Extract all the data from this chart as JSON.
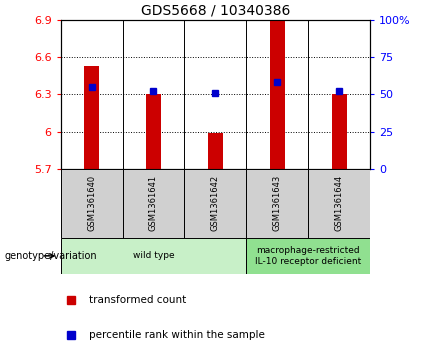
{
  "title": "GDS5668 / 10340386",
  "samples": [
    "GSM1361640",
    "GSM1361641",
    "GSM1361642",
    "GSM1361643",
    "GSM1361644"
  ],
  "bar_values": [
    6.53,
    6.3,
    5.99,
    6.9,
    6.3
  ],
  "bar_base": 5.7,
  "percentile_values": [
    55,
    52,
    51,
    58,
    52
  ],
  "ylim_left": [
    5.7,
    6.9
  ],
  "ylim_right": [
    0,
    100
  ],
  "yticks_left": [
    5.7,
    6.0,
    6.3,
    6.6,
    6.9
  ],
  "yticks_right": [
    0,
    25,
    50,
    75,
    100
  ],
  "ytick_labels_left": [
    "5.7",
    "6",
    "6.3",
    "6.6",
    "6.9"
  ],
  "ytick_labels_right": [
    "0",
    "25",
    "50",
    "75",
    "100%"
  ],
  "bar_color": "#cc0000",
  "dot_color": "#0000cc",
  "bg_color": "#ffffff",
  "plot_bg": "#ffffff",
  "genotype_groups": [
    {
      "label": "wild type",
      "samples": [
        0,
        1,
        2
      ],
      "color": "#c8f0c8"
    },
    {
      "label": "macrophage-restricted\nIL-10 receptor deficient",
      "samples": [
        3,
        4
      ],
      "color": "#90e090"
    }
  ],
  "legend_items": [
    {
      "label": "transformed count",
      "color": "#cc0000"
    },
    {
      "label": "percentile rank within the sample",
      "color": "#0000cc"
    }
  ],
  "genotype_label": "genotype/variation",
  "label_box_color": "#d0d0d0",
  "title_fontsize": 10,
  "tick_fontsize": 8,
  "sample_fontsize": 6,
  "geno_fontsize": 6.5,
  "legend_fontsize": 7.5
}
